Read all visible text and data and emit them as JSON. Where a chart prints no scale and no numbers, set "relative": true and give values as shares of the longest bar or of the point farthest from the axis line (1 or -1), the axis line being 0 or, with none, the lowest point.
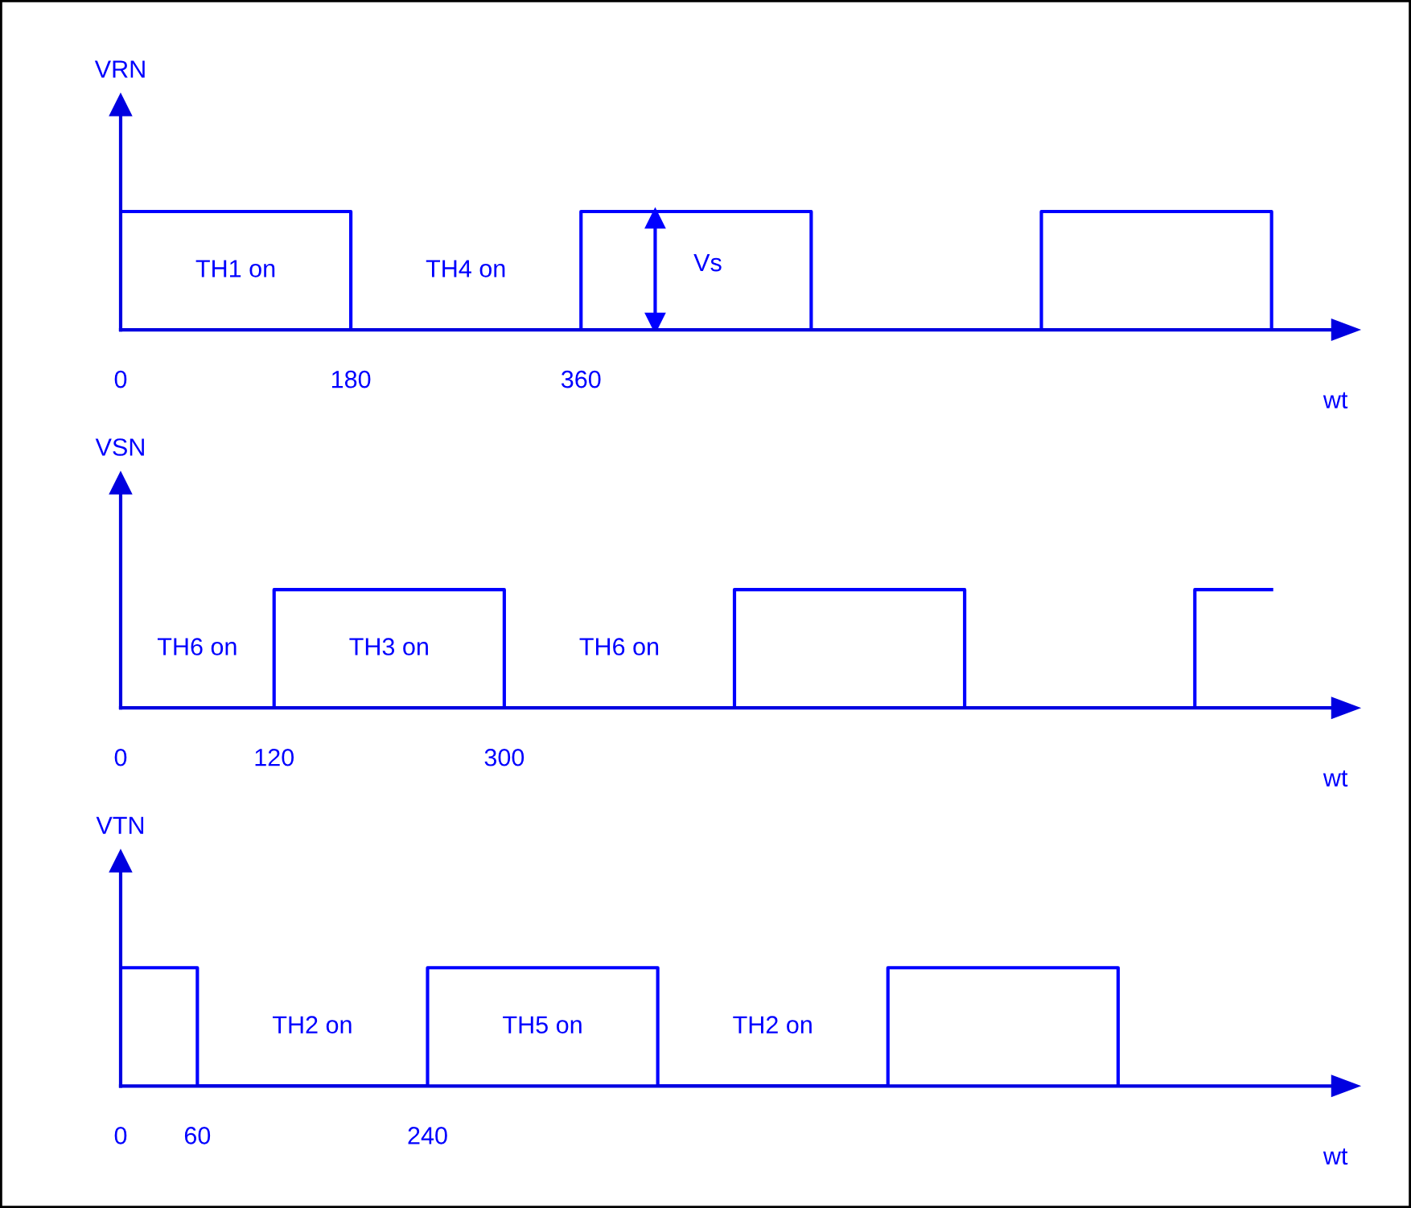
{
  "chart_data": [
    {
      "type": "step",
      "relative": true,
      "ylabel": "VRN",
      "xlabel": "wt",
      "xlim": [
        0,
        950
      ],
      "xticks": [
        0,
        180,
        360
      ],
      "series": [
        {
          "color": "#0000ff",
          "x": [
            0,
            180,
            360,
            540,
            720,
            900
          ],
          "values": [
            1,
            0,
            1,
            0,
            1,
            0
          ]
        }
      ],
      "ref_lines": [
        {
          "axis": "x",
          "value": 418,
          "label": "Vs",
          "color": "#0000ff"
        }
      ],
      "annotations": [
        "TH1 on",
        "TH4 on"
      ]
    },
    {
      "type": "step",
      "relative": true,
      "ylabel": "VSN",
      "xlabel": "wt",
      "xlim": [
        0,
        950
      ],
      "xticks": [
        0,
        120,
        300
      ],
      "series": [
        {
          "color": "#0000ff",
          "x": [
            0,
            120,
            300,
            480,
            660,
            840,
            900
          ],
          "values": [
            0,
            1,
            0,
            1,
            0,
            1,
            1
          ]
        }
      ],
      "annotations": [
        "TH6 on",
        "TH3 on",
        "TH6 on"
      ]
    },
    {
      "type": "step",
      "relative": true,
      "ylabel": "VTN",
      "xlabel": "wt",
      "xlim": [
        0,
        950
      ],
      "xticks": [
        0,
        60,
        240
      ],
      "series": [
        {
          "color": "#0000ff",
          "x": [
            0,
            60,
            240,
            420,
            600,
            780
          ],
          "values": [
            1,
            0,
            1,
            0,
            1,
            0
          ]
        }
      ],
      "annotations": [
        "TH2 on",
        "TH5 on",
        "TH2 on"
      ]
    }
  ]
}
